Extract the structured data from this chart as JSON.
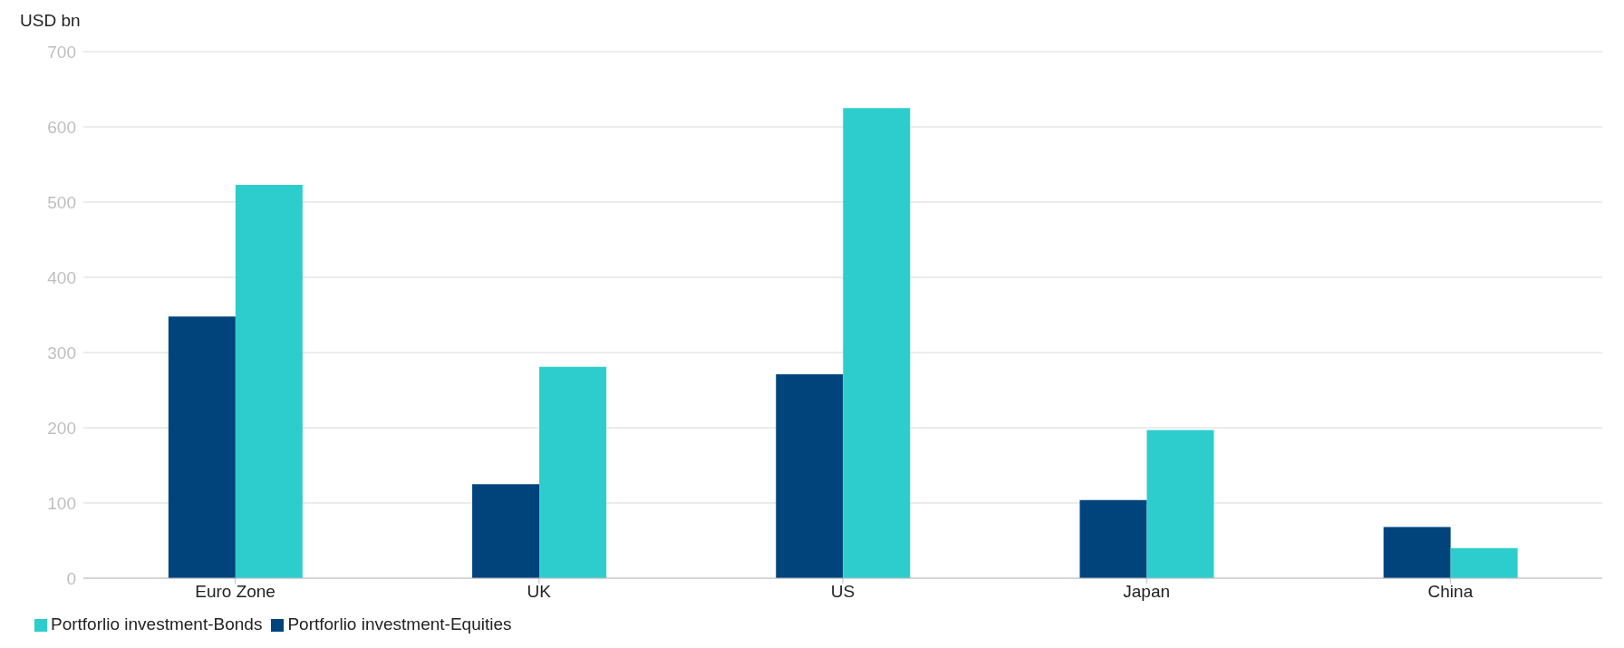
{
  "chart_data": {
    "type": "bar",
    "ylabel": "USD bn",
    "categories": [
      "Euro Zone",
      "UK",
      "US",
      "Japan",
      "China"
    ],
    "series": [
      {
        "name": "Portforlio investment-Equities",
        "color": "#00447c",
        "values": [
          348,
          125,
          271,
          104,
          68
        ]
      },
      {
        "name": "Portforlio investment-Bonds",
        "color": "#2ecdcd",
        "values": [
          523,
          281,
          625,
          197,
          40
        ]
      }
    ],
    "ylim": [
      0,
      700
    ],
    "yticks": [
      0,
      100,
      200,
      300,
      400,
      500,
      600,
      700
    ],
    "grid": "y",
    "legend": "bottom left"
  }
}
